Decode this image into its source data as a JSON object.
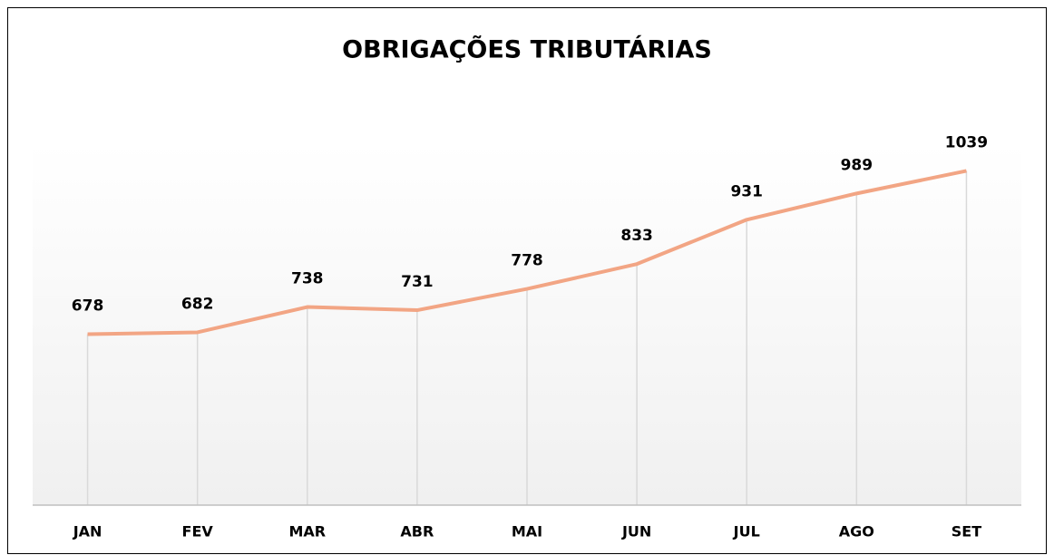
{
  "chart_data": {
    "type": "line",
    "title": "OBRIGAÇÕES TRIBUTÁRIAS",
    "categories": [
      "JAN",
      "FEV",
      "MAR",
      "ABR",
      "MAI",
      "JUN",
      "JUL",
      "AGO",
      "SET"
    ],
    "values": [
      678,
      682,
      738,
      731,
      778,
      833,
      931,
      989,
      1039
    ],
    "color": "#f2a584",
    "ylim": [
      300,
      1100
    ],
    "drop_lines": true
  }
}
